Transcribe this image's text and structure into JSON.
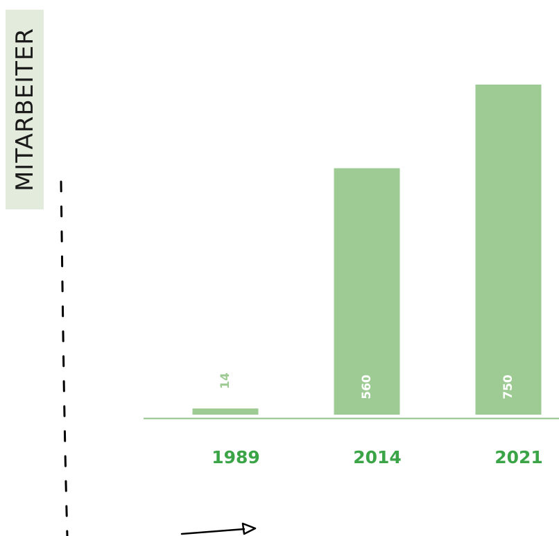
{
  "chart_data": {
    "type": "bar",
    "ylabel": "MITARBEITER",
    "categories": [
      "1989",
      "2014",
      "2021"
    ],
    "values": [
      14,
      560,
      750
    ],
    "data_labels": [
      "14",
      "560",
      "750"
    ],
    "ylim": [
      0,
      750
    ],
    "grid": false,
    "colors": {
      "bar": "#9ecb94",
      "category_label": "#3aa447",
      "baseline": "#8fc387",
      "value_label_inside": "#ffffff",
      "value_label_outside": "#9ecb94"
    }
  }
}
